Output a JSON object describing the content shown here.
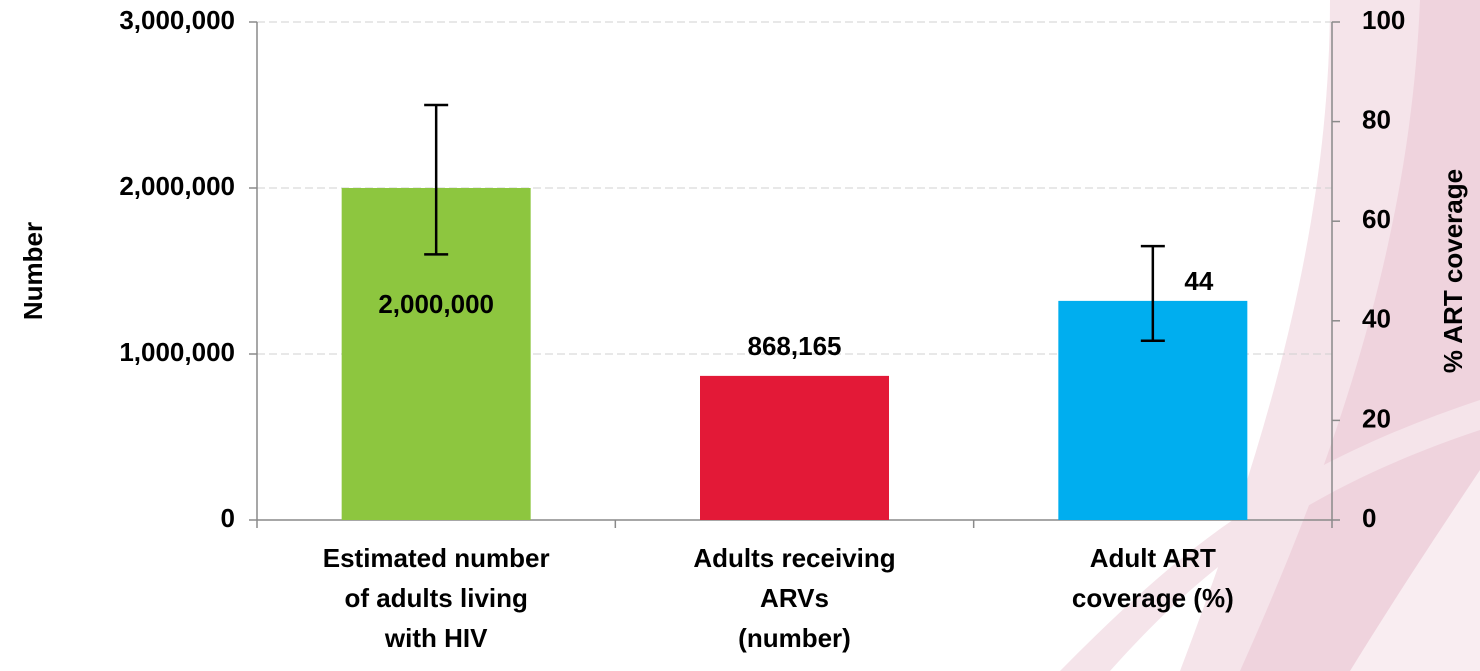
{
  "chart_data": {
    "type": "bar",
    "categories": [
      [
        "Estimated number",
        "of adults living",
        "with HIV"
      ],
      [
        "Adults receiving",
        "ARVs",
        "(number)"
      ],
      [
        "Adult ART",
        "coverage (%)"
      ]
    ],
    "series": [
      {
        "color": "#8dc63f",
        "values": [
          2000000,
          null,
          null
        ],
        "value_labels": [
          "2,000,000",
          null,
          null
        ],
        "error_low": [
          1600000,
          null,
          null
        ],
        "error_high": [
          2500000,
          null,
          null
        ]
      },
      {
        "color": "#e31937",
        "values": [
          null,
          868165,
          null
        ],
        "value_labels": [
          null,
          "868,165",
          null
        ]
      },
      {
        "color": "#00aeef",
        "axis": "y2",
        "values": [
          null,
          null,
          44
        ],
        "error_low": [
          null,
          null,
          36
        ],
        "error_high": [
          null,
          null,
          55
        ]
      }
    ],
    "ylabel": "Number",
    "y2label": "% ART coverage",
    "ylim": [
      0,
      3000000
    ],
    "yticks": [
      0,
      {
        "value": 1000000,
        "label": "1,000,000"
      },
      {
        "value": 2000000,
        "label": "2,000,000"
      },
      {
        "value": 3000000,
        "label": "3,000,000"
      }
    ],
    "y2lim": [
      0,
      100
    ],
    "y2ticks": [
      0,
      20,
      40,
      60,
      80,
      100
    ],
    "grid": true
  }
}
